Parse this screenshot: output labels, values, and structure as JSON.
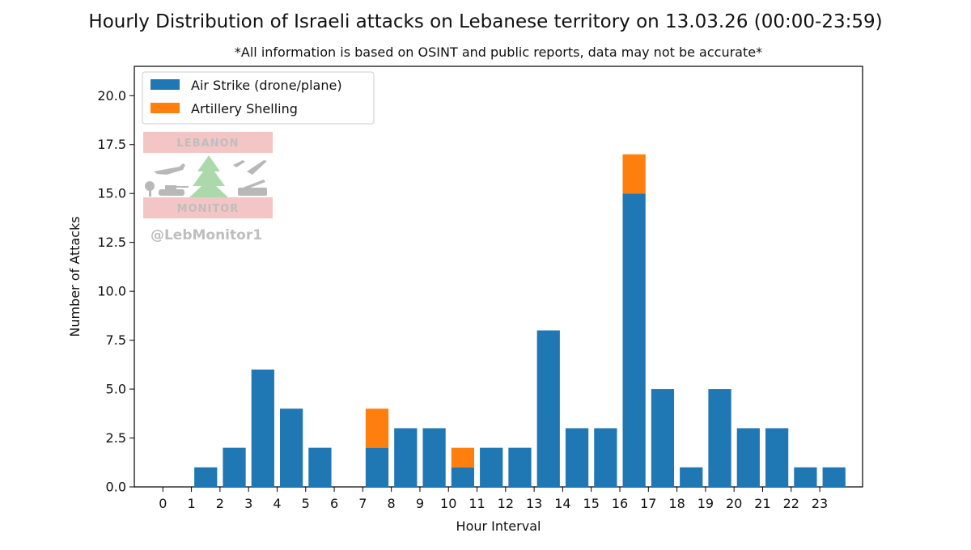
{
  "chart_data": {
    "type": "bar",
    "stacked": true,
    "title": "Hourly Distribution of Israeli attacks on Lebanese territory on 13.03.26 (00:00-23:59)",
    "subtitle": "*All information is based on OSINT and public reports, data may not be accurate*",
    "xlabel": "Hour Interval",
    "ylabel": "Number of Attacks",
    "ylim": [
      0,
      21.5
    ],
    "xlim": [
      -1,
      24.5
    ],
    "yticks": [
      "0.0",
      "2.5",
      "5.0",
      "7.5",
      "10.0",
      "12.5",
      "15.0",
      "17.5",
      "20.0"
    ],
    "ytick_values": [
      0,
      2.5,
      5,
      7.5,
      10,
      12.5,
      15,
      17.5,
      20
    ],
    "xtick_labels": [
      "0",
      "1",
      "2",
      "3",
      "4",
      "5",
      "6",
      "7",
      "8",
      "9",
      "10",
      "11",
      "12",
      "13",
      "14",
      "15",
      "16",
      "17",
      "18",
      "19",
      "20",
      "21",
      "22",
      "23"
    ],
    "bar_positions": [
      0.5,
      1.5,
      2.5,
      3.5,
      4.5,
      5.5,
      6.5,
      7.5,
      8.5,
      9.5,
      10.5,
      11.5,
      12.5,
      13.5,
      14.5,
      15.5,
      16.5,
      17.5,
      18.5,
      19.5,
      20.5,
      21.5,
      22.5,
      23.5
    ],
    "bar_width": 0.8,
    "legend_position": "top-left",
    "grid": false,
    "series": [
      {
        "name": "Air Strike (drone/plane)",
        "color": "#1f77b4",
        "values": [
          0,
          1,
          2,
          6,
          4,
          2,
          0,
          2,
          3,
          3,
          1,
          2,
          2,
          8,
          3,
          3,
          15,
          5,
          1,
          5,
          3,
          3,
          1,
          1
        ]
      },
      {
        "name": "Artillery Shelling",
        "color": "#ff7f0e",
        "values": [
          0,
          0,
          0,
          0,
          0,
          0,
          0,
          2,
          0,
          0,
          1,
          0,
          0,
          0,
          0,
          0,
          2,
          0,
          0,
          0,
          0,
          0,
          0,
          0
        ]
      }
    ]
  },
  "watermark": {
    "top_text": "LEBANON",
    "bottom_text": "MONITOR",
    "handle": "@LebMonitor1",
    "band_color": "#f4c2c2",
    "text_color": "#bbbbbb",
    "tree_color": "#a8d8a8"
  }
}
